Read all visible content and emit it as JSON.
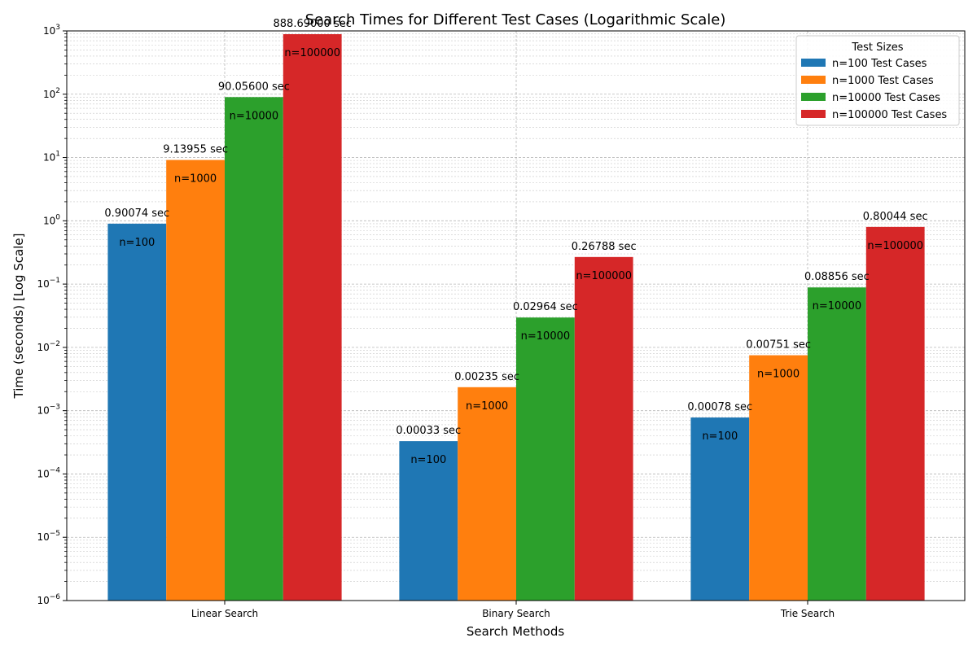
{
  "chart_data": {
    "type": "bar",
    "title": "Search Times for Different Test Cases (Logarithmic Scale)",
    "xlabel": "Search Methods",
    "ylabel": "Time (seconds) [Log Scale]",
    "yscale": "log",
    "ylim": [
      1e-06,
      1000
    ],
    "grid": true,
    "legend_position": "top-right",
    "legend_title": "Test Sizes",
    "categories": [
      "Linear Search",
      "Binary Search",
      "Trie Search"
    ],
    "series": [
      {
        "name": "n=100 Test Cases",
        "short_label": "n=100",
        "color": "#1f77b4",
        "values": [
          0.90074,
          0.00033,
          0.00078
        ],
        "value_labels": [
          "0.90074 sec",
          "0.00033 sec",
          "0.00078 sec"
        ]
      },
      {
        "name": "n=1000 Test Cases",
        "short_label": "n=1000",
        "color": "#ff7f0e",
        "values": [
          9.13955,
          0.00235,
          0.00751
        ],
        "value_labels": [
          "9.13955 sec",
          "0.00235 sec",
          "0.00751 sec"
        ]
      },
      {
        "name": "n=10000 Test Cases",
        "short_label": "n=10000",
        "color": "#2ca02c",
        "values": [
          90.056,
          0.02964,
          0.08856
        ],
        "value_labels": [
          "90.05600 sec",
          "0.02964 sec",
          "0.08856 sec"
        ]
      },
      {
        "name": "n=100000 Test Cases",
        "short_label": "n=100000",
        "color": "#d62728",
        "values": [
          888.69,
          0.26788,
          0.80044
        ],
        "value_labels": [
          "888.69000 sec",
          "0.26788 sec",
          "0.80044 sec"
        ]
      }
    ]
  }
}
